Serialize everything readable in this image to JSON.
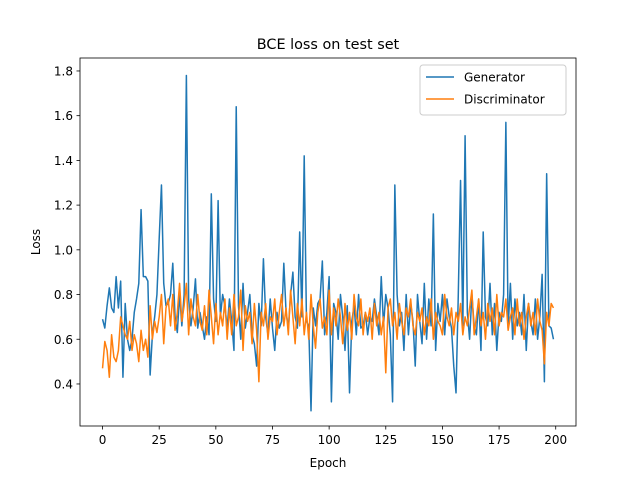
{
  "chart_data": {
    "type": "line",
    "title": "BCE loss on test set",
    "xlabel": "Epoch",
    "ylabel": "Loss",
    "x": [
      0,
      1,
      2,
      3,
      4,
      5,
      6,
      7,
      8,
      9,
      10,
      11,
      12,
      13,
      14,
      15,
      16,
      17,
      18,
      19,
      20,
      21,
      22,
      23,
      24,
      25,
      26,
      27,
      28,
      29,
      30,
      31,
      32,
      33,
      34,
      35,
      36,
      37,
      38,
      39,
      40,
      41,
      42,
      43,
      44,
      45,
      46,
      47,
      48,
      49,
      50,
      51,
      52,
      53,
      54,
      55,
      56,
      57,
      58,
      59,
      60,
      61,
      62,
      63,
      64,
      65,
      66,
      67,
      68,
      69,
      70,
      71,
      72,
      73,
      74,
      75,
      76,
      77,
      78,
      79,
      80,
      81,
      82,
      83,
      84,
      85,
      86,
      87,
      88,
      89,
      90,
      91,
      92,
      93,
      94,
      95,
      96,
      97,
      98,
      99,
      100,
      101,
      102,
      103,
      104,
      105,
      106,
      107,
      108,
      109,
      110,
      111,
      112,
      113,
      114,
      115,
      116,
      117,
      118,
      119,
      120,
      121,
      122,
      123,
      124,
      125,
      126,
      127,
      128,
      129,
      130,
      131,
      132,
      133,
      134,
      135,
      136,
      137,
      138,
      139,
      140,
      141,
      142,
      143,
      144,
      145,
      146,
      147,
      148,
      149,
      150,
      151,
      152,
      153,
      154,
      155,
      156,
      157,
      158,
      159,
      160,
      161,
      162,
      163,
      164,
      165,
      166,
      167,
      168,
      169,
      170,
      171,
      172,
      173,
      174,
      175,
      176,
      177,
      178,
      179,
      180,
      181,
      182,
      183,
      184,
      185,
      186,
      187,
      188,
      189,
      190,
      191,
      192,
      193,
      194,
      195,
      196,
      197,
      198,
      199
    ],
    "series": [
      {
        "name": "Generator",
        "color": "#1f77b4",
        "values": [
          0.69,
          0.65,
          0.75,
          0.83,
          0.74,
          0.72,
          0.88,
          0.74,
          0.86,
          0.43,
          0.76,
          0.6,
          0.55,
          0.6,
          0.72,
          0.78,
          0.85,
          1.18,
          0.88,
          0.88,
          0.86,
          0.44,
          0.62,
          0.7,
          0.8,
          1.05,
          1.29,
          0.85,
          0.75,
          0.76,
          0.8,
          0.94,
          0.7,
          0.63,
          0.8,
          0.66,
          0.8,
          1.78,
          0.78,
          0.66,
          0.74,
          0.87,
          0.65,
          0.72,
          0.66,
          0.6,
          0.7,
          0.62,
          1.25,
          0.78,
          0.68,
          1.22,
          0.7,
          0.8,
          0.75,
          0.65,
          0.78,
          0.68,
          0.55,
          1.64,
          0.75,
          0.6,
          0.85,
          0.65,
          0.72,
          0.8,
          0.62,
          0.58,
          0.48,
          0.76,
          0.66,
          0.96,
          0.7,
          0.62,
          0.78,
          0.65,
          0.55,
          0.72,
          0.65,
          0.68,
          0.94,
          0.72,
          0.65,
          0.8,
          0.9,
          0.7,
          0.65,
          1.08,
          0.7,
          1.42,
          0.68,
          0.66,
          0.28,
          0.74,
          0.66,
          0.76,
          0.78,
          0.95,
          0.62,
          0.72,
          0.88,
          0.32,
          0.76,
          0.72,
          0.6,
          0.8,
          0.7,
          0.55,
          0.75,
          0.36,
          0.68,
          0.75,
          0.62,
          0.8,
          0.65,
          0.66,
          0.72,
          0.62,
          0.7,
          0.68,
          0.78,
          0.7,
          0.62,
          0.88,
          0.66,
          0.8,
          0.74,
          0.62,
          0.32,
          1.29,
          0.8,
          0.66,
          0.72,
          0.55,
          0.8,
          0.62,
          0.76,
          0.68,
          0.48,
          0.8,
          0.68,
          0.58,
          0.85,
          0.6,
          0.78,
          0.66,
          1.16,
          0.55,
          0.76,
          0.68,
          0.8,
          0.62,
          0.78,
          0.7,
          0.65,
          0.48,
          0.36,
          0.8,
          1.31,
          0.66,
          1.51,
          0.72,
          0.6,
          0.8,
          0.66,
          0.62,
          0.78,
          0.55,
          1.08,
          0.7,
          0.66,
          0.85,
          0.62,
          0.76,
          0.55,
          0.72,
          0.68,
          0.8,
          1.57,
          0.65,
          0.85,
          0.6,
          0.78,
          0.66,
          0.72,
          0.62,
          0.8,
          0.55,
          0.76,
          0.68,
          0.62,
          0.78,
          0.6,
          0.7,
          0.89,
          0.41,
          1.34,
          0.66,
          0.65,
          0.6
        ]
      },
      {
        "name": "Discriminator",
        "color": "#ff7f0e",
        "values": [
          0.47,
          0.59,
          0.55,
          0.43,
          0.62,
          0.52,
          0.5,
          0.55,
          0.7,
          0.66,
          0.62,
          0.6,
          0.68,
          0.55,
          0.62,
          0.58,
          0.5,
          0.64,
          0.55,
          0.6,
          0.52,
          0.75,
          0.6,
          0.68,
          0.63,
          0.7,
          0.8,
          0.58,
          0.74,
          0.78,
          0.66,
          0.8,
          0.64,
          0.72,
          0.85,
          0.68,
          0.75,
          0.85,
          0.62,
          0.78,
          0.7,
          0.66,
          0.8,
          0.68,
          0.64,
          0.75,
          0.62,
          0.82,
          0.7,
          0.58,
          0.76,
          0.62,
          0.72,
          0.66,
          0.78,
          0.6,
          0.74,
          0.62,
          0.8,
          0.66,
          0.7,
          0.82,
          0.55,
          0.75,
          0.68,
          0.72,
          0.58,
          0.76,
          0.64,
          0.41,
          0.72,
          0.66,
          0.76,
          0.6,
          0.7,
          0.68,
          0.78,
          0.62,
          0.72,
          0.8,
          0.66,
          0.74,
          0.62,
          0.82,
          0.7,
          0.58,
          0.76,
          0.66,
          0.78,
          0.62,
          0.72,
          0.6,
          0.8,
          0.66,
          0.56,
          0.72,
          0.78,
          0.65,
          0.7,
          0.62,
          0.82,
          0.62,
          0.74,
          0.66,
          0.78,
          0.7,
          0.58,
          0.76,
          0.64,
          0.72,
          0.6,
          0.8,
          0.7,
          0.66,
          0.78,
          0.62,
          0.72,
          0.68,
          0.74,
          0.6,
          0.76,
          0.66,
          0.72,
          0.62,
          0.7,
          0.45,
          0.74,
          0.78,
          0.66,
          0.72,
          0.6,
          0.76,
          0.68,
          0.62,
          0.74,
          0.7,
          0.78,
          0.66,
          0.62,
          0.72,
          0.68,
          0.74,
          0.62,
          0.7,
          0.66,
          0.78,
          0.6,
          0.72,
          0.68,
          0.66,
          0.62,
          0.8,
          0.7,
          0.66,
          0.74,
          0.62,
          0.72,
          0.68,
          0.76,
          0.62,
          0.7,
          0.66,
          0.74,
          0.82,
          0.62,
          0.7,
          0.78,
          0.66,
          0.72,
          0.6,
          0.76,
          0.68,
          0.74,
          0.62,
          0.8,
          0.66,
          0.72,
          0.7,
          0.78,
          0.64,
          0.7,
          0.74,
          0.62,
          0.78,
          0.66,
          0.72,
          0.6,
          0.7,
          0.76,
          0.66,
          0.72,
          0.62,
          0.78,
          0.68,
          0.64,
          0.49,
          0.72,
          0.66,
          0.76,
          0.74
        ]
      }
    ],
    "xlim": [
      -9.95,
      208.95
    ],
    "ylim": [
      0.212,
      1.858
    ],
    "xticks": [
      0,
      25,
      50,
      75,
      100,
      125,
      150,
      175,
      200
    ],
    "yticks": [
      0.4,
      0.6,
      0.8,
      {
        "value": 1,
        "label": "1.0"
      },
      1.2,
      1.4,
      1.6,
      1.8
    ],
    "legend": "upper right",
    "grid": false
  }
}
